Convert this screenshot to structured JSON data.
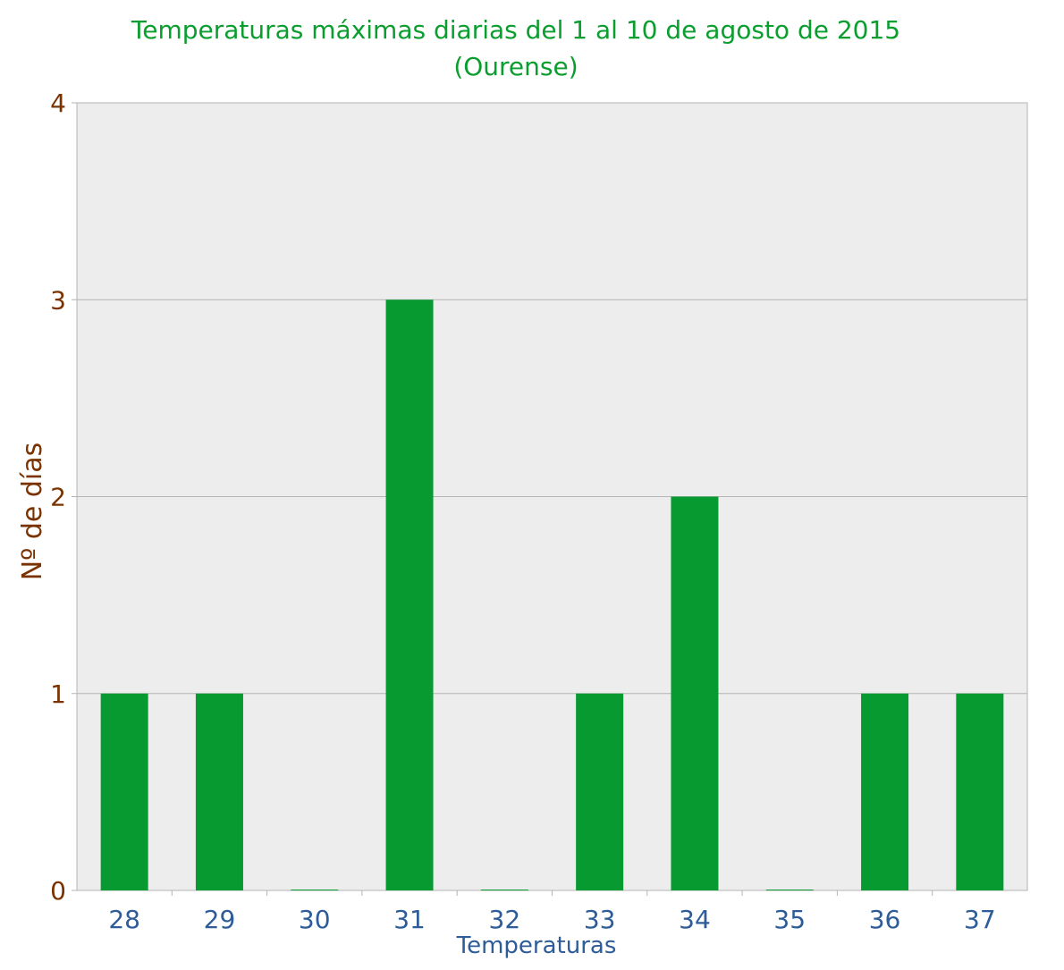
{
  "chart_data": {
    "type": "bar",
    "title": "Temperaturas máximas diarias del 1 al 10 de agosto de 2015",
    "subtitle": "(Ourense)",
    "xlabel": "Temperaturas",
    "ylabel": "Nº de días",
    "categories": [
      "28",
      "29",
      "30",
      "31",
      "32",
      "33",
      "34",
      "35",
      "36",
      "37"
    ],
    "values": [
      1,
      1,
      0,
      3,
      0,
      1,
      2,
      0,
      1,
      1
    ],
    "ylim": [
      0,
      4
    ],
    "yticks": [
      "0",
      "1",
      "2",
      "3",
      "4"
    ],
    "grid": true,
    "legend": "none",
    "colors": {
      "bar": "#079a30",
      "title": "#0a9e2e",
      "yaxis": "#7a3300",
      "xaxis": "#2d5c98",
      "plot_bg": "#ededed",
      "grid": "#b4b4b4"
    }
  }
}
